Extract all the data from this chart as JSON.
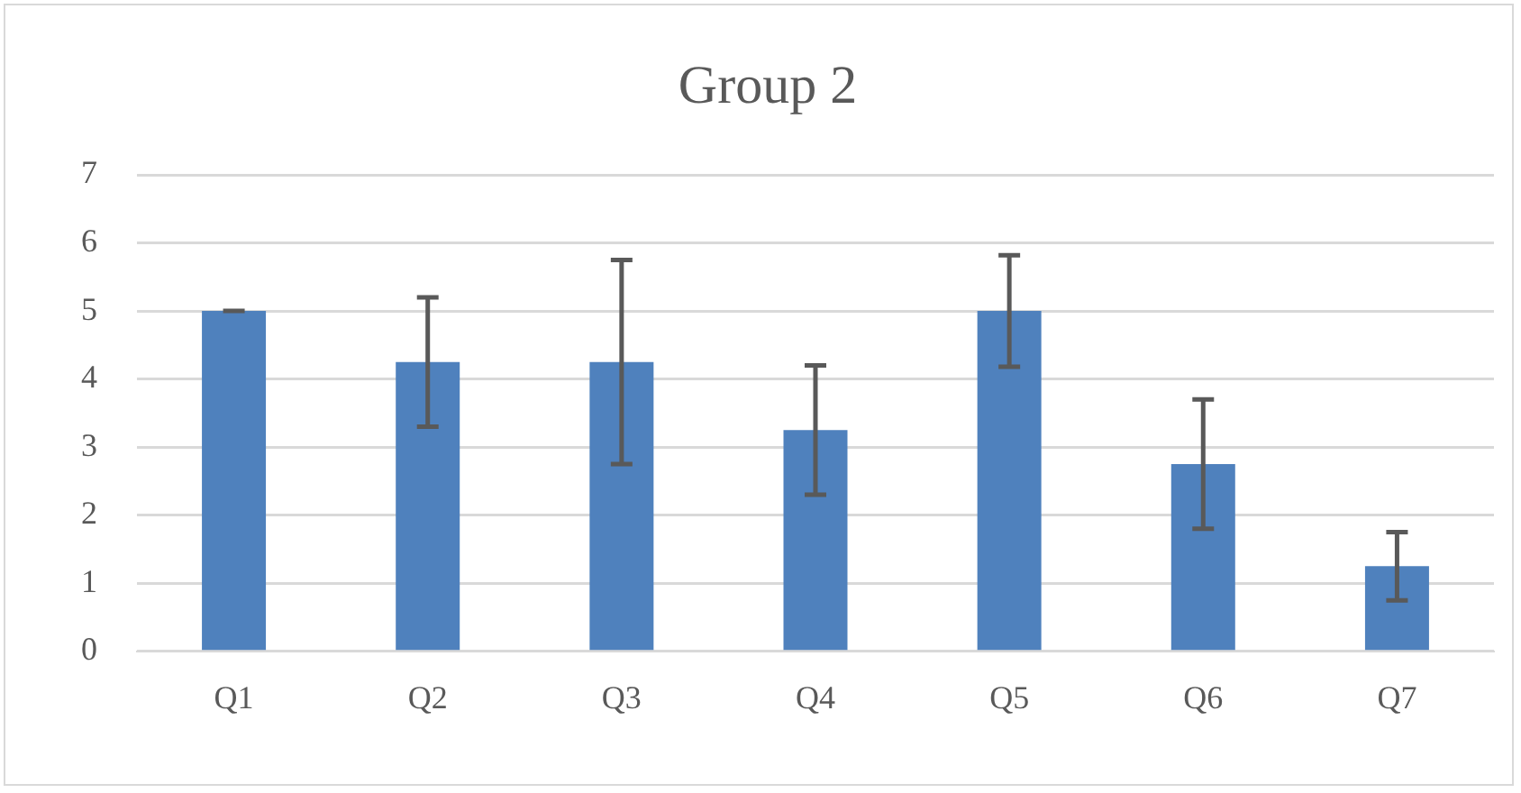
{
  "chart_data": {
    "type": "bar",
    "title": "Group 2",
    "categories": [
      "Q1",
      "Q2",
      "Q3",
      "Q4",
      "Q5",
      "Q6",
      "Q7"
    ],
    "values": [
      5,
      4.25,
      4.25,
      3.25,
      5,
      2.75,
      1.25
    ],
    "errors": [
      0,
      0.95,
      1.5,
      0.95,
      0.82,
      0.95,
      0.5
    ],
    "color": "#4f81bd",
    "ylim": [
      0,
      7
    ],
    "yticks": [
      0,
      1,
      2,
      3,
      4,
      5,
      6,
      7
    ],
    "grid": "y",
    "legend": false
  }
}
